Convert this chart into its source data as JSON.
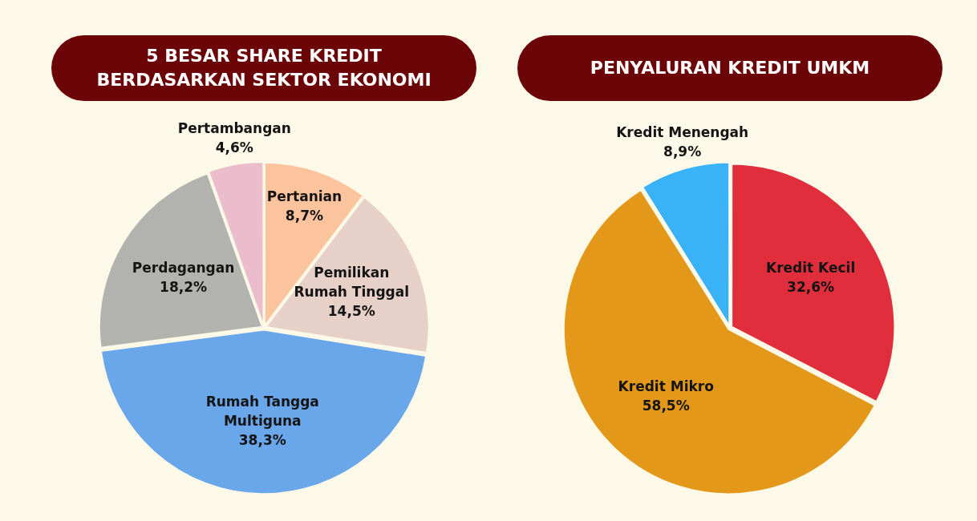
{
  "chart_data": [
    {
      "type": "pie",
      "title": "5 BESAR SHARE KREDIT BERDASARKAN SEKTOR EKONOMI",
      "categories": [
        "Pertanian",
        "Pemilikan Rumah Tinggal",
        "Rumah Tangga Multiguna",
        "Perdagangan",
        "Pertambangan"
      ],
      "values": [
        8.7,
        14.5,
        38.3,
        18.2,
        4.6
      ],
      "value_labels": [
        "8,7%",
        "14,5%",
        "38,3%",
        "18,2%",
        "4,6%"
      ],
      "colors": [
        "#fbc49c",
        "#e6d0c8",
        "#6aa6ea",
        "#b2b2ae",
        "#ebbccb"
      ]
    },
    {
      "type": "pie",
      "title": "PENYALURAN KREDIT UMKM",
      "categories": [
        "Kredit Kecil",
        "Kredit Mikro",
        "Kredit Menengah"
      ],
      "values": [
        32.6,
        58.5,
        8.9
      ],
      "value_labels": [
        "32,6%",
        "58,5%",
        "8,9%"
      ],
      "colors": [
        "#e02e3c",
        "#e3981a",
        "#3ab2f8"
      ]
    }
  ]
}
